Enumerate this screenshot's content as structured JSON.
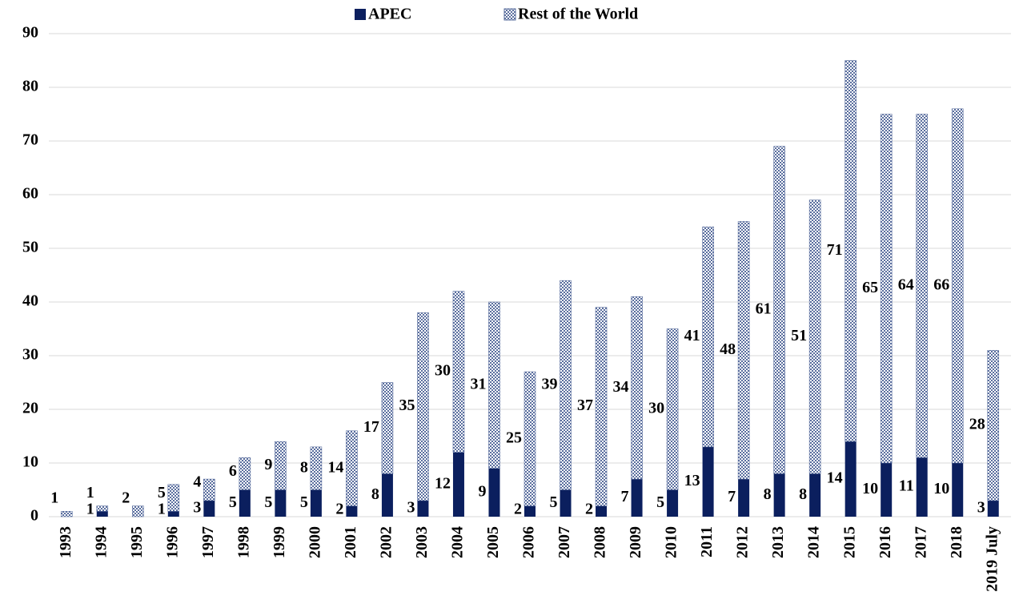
{
  "chart_data": {
    "type": "stacked_bar",
    "categories": [
      "1993",
      "1994",
      "1995",
      "1996",
      "1997",
      "1998",
      "1999",
      "2000",
      "2001",
      "2002",
      "2003",
      "2004",
      "2005",
      "2006",
      "2007",
      "2008",
      "2009",
      "2010",
      "2011",
      "2012",
      "2013",
      "2014",
      "2015",
      "2016",
      "2017",
      "2018",
      "2019 July"
    ],
    "series": [
      {
        "name": "APEC",
        "color": "#0b1f5e",
        "values": [
          null,
          1,
          null,
          1,
          3,
          5,
          5,
          5,
          2,
          8,
          3,
          12,
          9,
          2,
          5,
          2,
          7,
          5,
          13,
          7,
          8,
          8,
          14,
          10,
          11,
          10,
          3
        ]
      },
      {
        "name": "Rest of the World",
        "color": "#8d9cc0",
        "values": [
          1,
          1,
          2,
          5,
          4,
          6,
          9,
          8,
          14,
          17,
          35,
          30,
          31,
          25,
          39,
          37,
          34,
          30,
          41,
          48,
          61,
          51,
          71,
          65,
          64,
          66,
          28
        ]
      }
    ],
    "ylim": [
      0,
      90
    ],
    "yticks": [
      0,
      10,
      20,
      30,
      40,
      50,
      60,
      70,
      80,
      90
    ],
    "grid": true,
    "legend": "top"
  }
}
